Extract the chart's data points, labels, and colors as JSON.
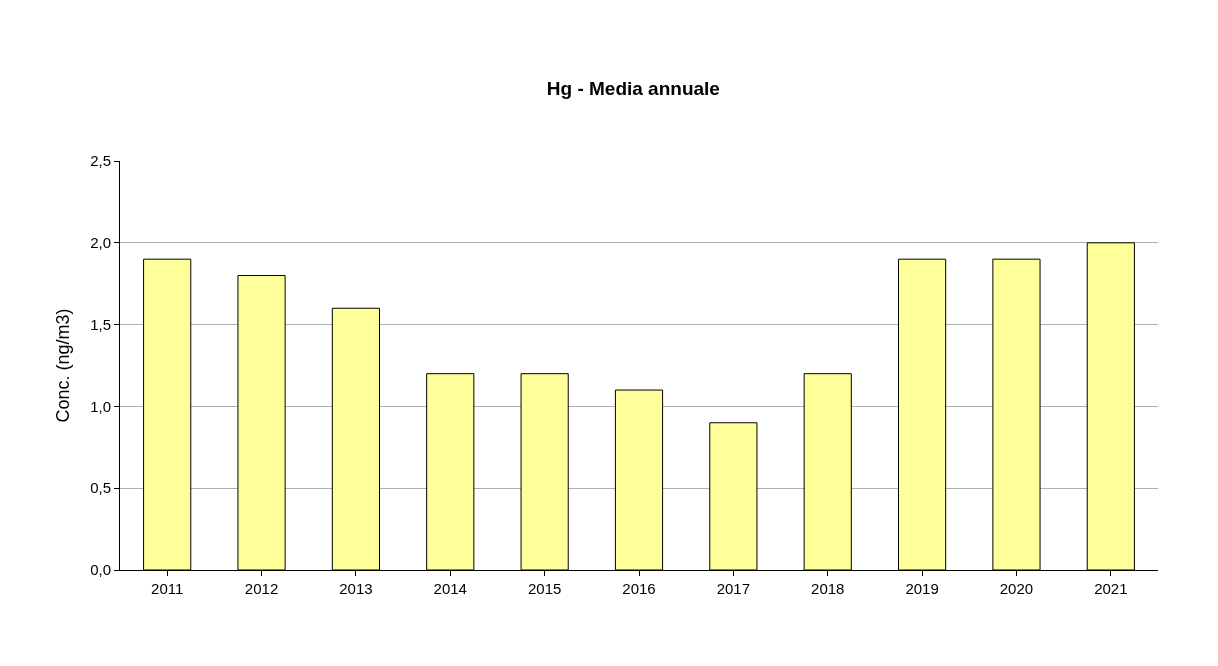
{
  "chart_data": {
    "type": "bar",
    "title": "Hg - Media annuale",
    "ylabel": "Conc. (ng/m3)",
    "categories": [
      "2011",
      "2012",
      "2013",
      "2014",
      "2015",
      "2016",
      "2017",
      "2018",
      "2019",
      "2020",
      "2021"
    ],
    "series": [
      {
        "color": "#ffff99",
        "values": [
          1.9,
          1.8,
          1.6,
          1.2,
          1.2,
          1.1,
          0.9,
          1.2,
          1.9,
          1.9,
          2.0
        ]
      }
    ],
    "ylim": [
      0,
      2.5
    ],
    "yticks": [
      {
        "value": 0,
        "label": "0,0"
      },
      {
        "value": 0.5,
        "label": "0,5"
      },
      {
        "value": 1,
        "label": "1,0"
      },
      {
        "value": 1.5,
        "label": "1,5"
      },
      {
        "value": 2,
        "label": "2,0"
      },
      {
        "value": 2.5,
        "label": "2,5"
      }
    ],
    "grid": "y"
  }
}
